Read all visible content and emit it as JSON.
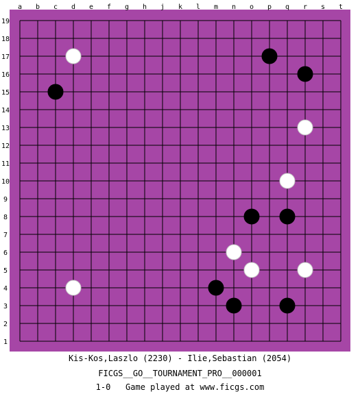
{
  "board": {
    "size": 19,
    "board_color": "#a646a6",
    "line_color": "#000000",
    "column_letters": [
      "a",
      "b",
      "c",
      "d",
      "e",
      "f",
      "g",
      "h",
      "j",
      "k",
      "l",
      "m",
      "n",
      "o",
      "p",
      "q",
      "r",
      "s",
      "t"
    ],
    "row_numbers": [
      "1",
      "2",
      "3",
      "4",
      "5",
      "6",
      "7",
      "8",
      "9",
      "10",
      "11",
      "12",
      "13",
      "14",
      "15",
      "16",
      "17",
      "18",
      "19"
    ],
    "stones": [
      {
        "color": "white",
        "point": "d17"
      },
      {
        "color": "black",
        "point": "p17"
      },
      {
        "color": "black",
        "point": "r16"
      },
      {
        "color": "black",
        "point": "c15"
      },
      {
        "color": "white",
        "point": "r13"
      },
      {
        "color": "white",
        "point": "q10"
      },
      {
        "color": "black",
        "point": "o8"
      },
      {
        "color": "black",
        "point": "q8"
      },
      {
        "color": "white",
        "point": "n6"
      },
      {
        "color": "white",
        "point": "o5"
      },
      {
        "color": "white",
        "point": "r5"
      },
      {
        "color": "white",
        "point": "d4"
      },
      {
        "color": "black",
        "point": "m4"
      },
      {
        "color": "black",
        "point": "n3"
      },
      {
        "color": "black",
        "point": "q3"
      }
    ]
  },
  "caption": {
    "players": "Kis-Kos,Laszlo (2230) - Ilie,Sebastian (2054)",
    "event": "FICGS__GO__TOURNAMENT_PRO__000001",
    "result": "1-0",
    "footer_text": "Game played at www.ficgs.com"
  }
}
